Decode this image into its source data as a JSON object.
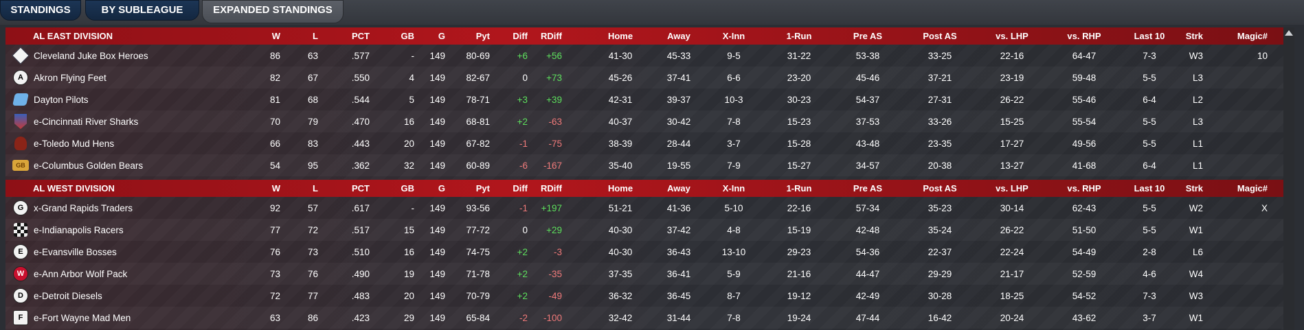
{
  "tabs": [
    {
      "label": "STANDINGS",
      "active": false
    },
    {
      "label": "BY SUBLEAGUE",
      "active": false
    },
    {
      "label": "EXPANDED STANDINGS",
      "active": true
    }
  ],
  "columns": [
    "W",
    "L",
    "PCT",
    "GB",
    "G",
    "Pyt",
    "Diff",
    "RDiff",
    "Home",
    "Away",
    "X-Inn",
    "1-Run",
    "Pre AS",
    "Post AS",
    "vs. LHP",
    "vs. RHP",
    "Last 10",
    "Strk",
    "Magic#"
  ],
  "divisions": [
    {
      "name": "AL EAST DIVISION",
      "teams": [
        {
          "logo": "cleveland-logo-icon",
          "name": "Cleveland Juke Box Heroes",
          "cells": [
            "86",
            "63",
            ".577",
            "-",
            "149",
            "80-69",
            "+6",
            "+56",
            "41-30",
            "45-33",
            "9-5",
            "31-22",
            "53-38",
            "33-25",
            "22-16",
            "64-47",
            "7-3",
            "W3",
            "10"
          ]
        },
        {
          "logo": "akron-logo-icon",
          "name": "Akron  Flying Feet",
          "cells": [
            "82",
            "67",
            ".550",
            "4",
            "149",
            "82-67",
            "0",
            "+73",
            "45-26",
            "37-41",
            "6-6",
            "23-20",
            "45-46",
            "37-21",
            "23-19",
            "59-48",
            "5-5",
            "L3",
            ""
          ]
        },
        {
          "logo": "dayton-logo-icon",
          "name": "Dayton Pilots",
          "cells": [
            "81",
            "68",
            ".544",
            "5",
            "149",
            "78-71",
            "+3",
            "+39",
            "42-31",
            "39-37",
            "10-3",
            "30-23",
            "54-37",
            "27-31",
            "26-22",
            "55-46",
            "6-4",
            "L2",
            ""
          ]
        },
        {
          "logo": "cincinnati-logo-icon",
          "name": "e-Cincinnati River Sharks",
          "cells": [
            "70",
            "79",
            ".470",
            "16",
            "149",
            "68-81",
            "+2",
            "-63",
            "40-37",
            "30-42",
            "7-8",
            "15-23",
            "37-53",
            "33-26",
            "15-25",
            "55-54",
            "5-5",
            "L3",
            ""
          ]
        },
        {
          "logo": "toledo-logo-icon",
          "name": "e-Toledo  Mud Hens",
          "cells": [
            "66",
            "83",
            ".443",
            "20",
            "149",
            "67-82",
            "-1",
            "-75",
            "38-39",
            "28-44",
            "3-7",
            "15-28",
            "43-48",
            "23-35",
            "17-27",
            "49-56",
            "5-5",
            "L1",
            ""
          ]
        },
        {
          "logo": "columbus-logo-icon",
          "name": "e-Columbus Golden Bears",
          "cells": [
            "54",
            "95",
            ".362",
            "32",
            "149",
            "60-89",
            "-6",
            "-167",
            "35-40",
            "19-55",
            "7-9",
            "15-27",
            "34-57",
            "20-38",
            "13-27",
            "41-68",
            "6-4",
            "L1",
            ""
          ]
        }
      ]
    },
    {
      "name": "AL WEST DIVISION",
      "teams": [
        {
          "logo": "grand-rapids-logo-icon",
          "name": "x-Grand Rapids Traders",
          "cells": [
            "92",
            "57",
            ".617",
            "-",
            "149",
            "93-56",
            "-1",
            "+197",
            "51-21",
            "41-36",
            "5-10",
            "22-16",
            "57-34",
            "35-23",
            "30-14",
            "62-43",
            "5-5",
            "W2",
            "X"
          ]
        },
        {
          "logo": "indianapolis-logo-icon",
          "name": "e-Indianapolis Racers",
          "cells": [
            "77",
            "72",
            ".517",
            "15",
            "149",
            "77-72",
            "0",
            "+29",
            "40-30",
            "37-42",
            "4-8",
            "15-19",
            "42-48",
            "35-24",
            "26-22",
            "51-50",
            "5-5",
            "W1",
            ""
          ]
        },
        {
          "logo": "evansville-logo-icon",
          "name": "e-Evansville Bosses",
          "cells": [
            "76",
            "73",
            ".510",
            "16",
            "149",
            "74-75",
            "+2",
            "-3",
            "40-30",
            "36-43",
            "13-10",
            "29-23",
            "54-36",
            "22-37",
            "22-24",
            "54-49",
            "2-8",
            "L6",
            ""
          ]
        },
        {
          "logo": "ann-arbor-logo-icon",
          "name": "e-Ann Arbor Wolf Pack",
          "cells": [
            "73",
            "76",
            ".490",
            "19",
            "149",
            "71-78",
            "+2",
            "-35",
            "37-35",
            "36-41",
            "5-9",
            "21-16",
            "44-47",
            "29-29",
            "21-17",
            "52-59",
            "4-6",
            "W4",
            ""
          ]
        },
        {
          "logo": "detroit-logo-icon",
          "name": "e-Detroit Diesels",
          "cells": [
            "72",
            "77",
            ".483",
            "20",
            "149",
            "70-79",
            "+2",
            "-49",
            "36-32",
            "36-45",
            "8-7",
            "19-12",
            "42-49",
            "30-28",
            "18-25",
            "54-52",
            "7-3",
            "W3",
            ""
          ]
        },
        {
          "logo": "fort-wayne-logo-icon",
          "name": "e-Fort Wayne Mad Men",
          "cells": [
            "63",
            "86",
            ".423",
            "29",
            "149",
            "65-84",
            "-2",
            "-100",
            "32-42",
            "31-44",
            "7-8",
            "19-24",
            "47-44",
            "16-42",
            "20-24",
            "43-62",
            "3-7",
            "W1",
            ""
          ]
        }
      ]
    }
  ],
  "logo_letters": {
    "akron": "A",
    "grand_rapids": "G",
    "evansville": "E",
    "ann_arbor": "W",
    "detroit": "D",
    "fort_wayne": "F",
    "columbus": "GB"
  },
  "colors": {
    "positive": "#5de05d",
    "negative": "#f07a7a",
    "header_red": "#b1161c"
  }
}
